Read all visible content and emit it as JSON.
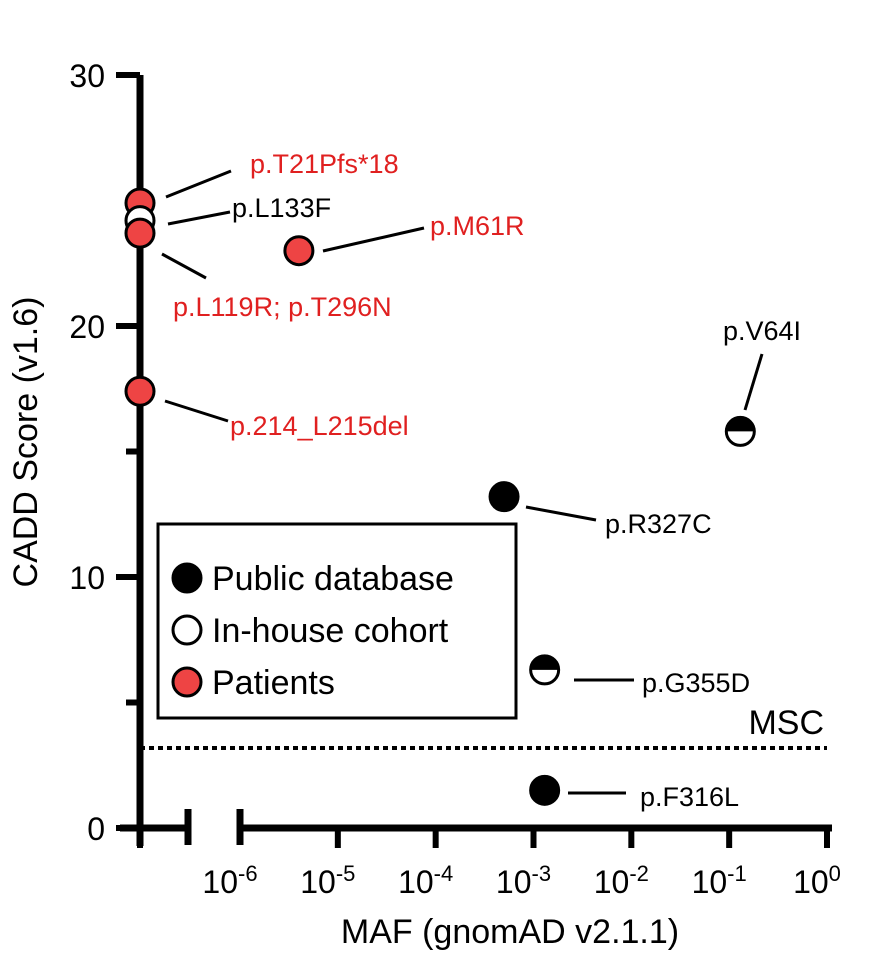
{
  "chart_data": {
    "type": "scatter",
    "xlabel": "MAF (gnomAD v2.1.1)",
    "ylabel": "CADD Score (v1.6)",
    "xscale": "log10",
    "x_axis_broken": true,
    "xlim": [
      1e-06,
      1
    ],
    "ylim": [
      0,
      30
    ],
    "x_ticks": [
      {
        "base": "10",
        "exp": "-6",
        "value": 1e-06
      },
      {
        "base": "10",
        "exp": "-5",
        "value": 1e-05
      },
      {
        "base": "10",
        "exp": "-4",
        "value": 0.0001
      },
      {
        "base": "10",
        "exp": "-3",
        "value": 0.001
      },
      {
        "base": "10",
        "exp": "-2",
        "value": 0.01
      },
      {
        "base": "10",
        "exp": "-1",
        "value": 0.1
      },
      {
        "base": "10",
        "exp": "0",
        "value": 1
      }
    ],
    "y_ticks": [
      "0",
      "10",
      "20",
      "30"
    ],
    "legend": {
      "position": "lower-left",
      "entries": [
        {
          "label": "Public database",
          "category": "public"
        },
        {
          "label": "In-house cohort",
          "category": "inhouse"
        },
        {
          "label": "Patients",
          "category": "patient"
        }
      ]
    },
    "threshold": {
      "label": "MSC",
      "y": 3.13,
      "style": "dotted"
    },
    "points": [
      {
        "label": "p.T21Pfs*18",
        "maf": 0,
        "cadd": 24.9,
        "category": "patient"
      },
      {
        "label": "p.L133F",
        "maf": 0,
        "cadd": 24.2,
        "category": "inhouse"
      },
      {
        "label": "p.L119R; p.T296N",
        "maf": 0,
        "cadd": 23.7,
        "category": "patient"
      },
      {
        "label": "p.M61R",
        "maf": 4e-06,
        "cadd": 23.0,
        "category": "patient"
      },
      {
        "label": "p.214_L215del",
        "maf": 0,
        "cadd": 17.4,
        "category": "patient"
      },
      {
        "label": "p.V64I",
        "maf": 0.13,
        "cadd": 15.8,
        "category": "mixed"
      },
      {
        "label": "p.R327C",
        "maf": 0.0005,
        "cadd": 13.2,
        "category": "public"
      },
      {
        "label": "p.G355D",
        "maf": 0.0013,
        "cadd": 6.3,
        "category": "mixed"
      },
      {
        "label": "p.F316L",
        "maf": 0.0013,
        "cadd": 1.5,
        "category": "public"
      }
    ],
    "colors": {
      "patient": "#ee4444",
      "patient_text": "#e02020",
      "public": "#000000",
      "inhouse": "#ffffff",
      "axis": "#000000"
    }
  }
}
